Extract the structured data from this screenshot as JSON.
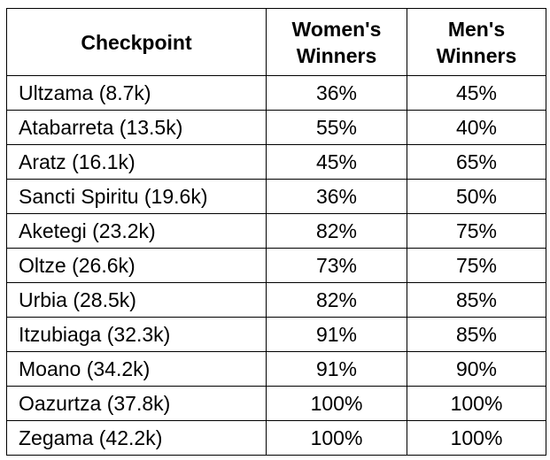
{
  "table": {
    "headers": {
      "checkpoint": "Checkpoint",
      "women": [
        "Women's",
        "Winners"
      ],
      "men": [
        "Men's",
        "Winners"
      ]
    },
    "rows": [
      {
        "checkpoint": "Ultzama (8.7k)",
        "women": "36%",
        "men": "45%"
      },
      {
        "checkpoint": "Atabarreta (13.5k)",
        "women": "55%",
        "men": "40%"
      },
      {
        "checkpoint": "Aratz (16.1k)",
        "women": "45%",
        "men": "65%"
      },
      {
        "checkpoint": "Sancti Spiritu (19.6k)",
        "women": "36%",
        "men": "50%"
      },
      {
        "checkpoint": "Aketegi (23.2k)",
        "women": "82%",
        "men": "75%"
      },
      {
        "checkpoint": "Oltze (26.6k)",
        "women": "73%",
        "men": "75%"
      },
      {
        "checkpoint": "Urbia (28.5k)",
        "women": "82%",
        "men": "85%"
      },
      {
        "checkpoint": "Itzubiaga (32.3k)",
        "women": "91%",
        "men": "85%"
      },
      {
        "checkpoint": "Moano (34.2k)",
        "women": "91%",
        "men": "90%"
      },
      {
        "checkpoint": "Oazurtza (37.8k)",
        "women": "100%",
        "men": "100%"
      },
      {
        "checkpoint": "Zegama (42.2k)",
        "women": "100%",
        "men": "100%"
      }
    ]
  }
}
